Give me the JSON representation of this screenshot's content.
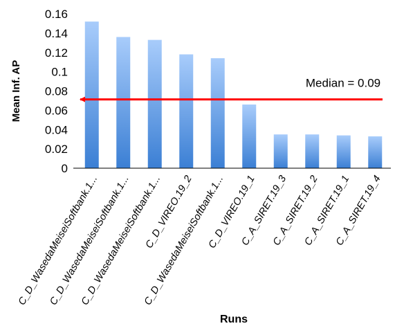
{
  "chart_data": {
    "type": "bar",
    "title": "",
    "xlabel": "Runs",
    "ylabel": "Mean Inf. AP",
    "ylim": [
      0,
      0.16
    ],
    "yticks": [
      0,
      0.02,
      0.04,
      0.06,
      0.08,
      0.1,
      0.12,
      0.14,
      0.16
    ],
    "ytick_labels": [
      "0",
      "0.02",
      "0.04",
      "0.06",
      "0.08",
      "0.1",
      "0.12",
      "0.14",
      "0.16"
    ],
    "grid": false,
    "legend": "none",
    "categories": [
      "C_D_WasedaMeiseiSoftbank.1...",
      "C_D_WasedaMeiseiSoftbank.1...",
      "C_D_WasedaMeiseiSoftbank.1...",
      "C_D_VIREO.19_2",
      "C_D_WasedaMeiseiSoftbank.1...",
      "C_D_VIREO.19_1",
      "C_A_SIRET.19_3",
      "C_A_SIRET.19_2",
      "C_A_SIRET.19_1",
      "C_A_SIRET.19_4"
    ],
    "values": [
      0.152,
      0.136,
      0.133,
      0.118,
      0.114,
      0.066,
      0.035,
      0.035,
      0.034,
      0.033
    ],
    "median": {
      "value": 0.09,
      "label": "Median = 0.09"
    },
    "colors": {
      "bar_top": "#a8ccfb",
      "bar_bottom": "#3b7fd4",
      "median_line": "#ff0000"
    }
  }
}
